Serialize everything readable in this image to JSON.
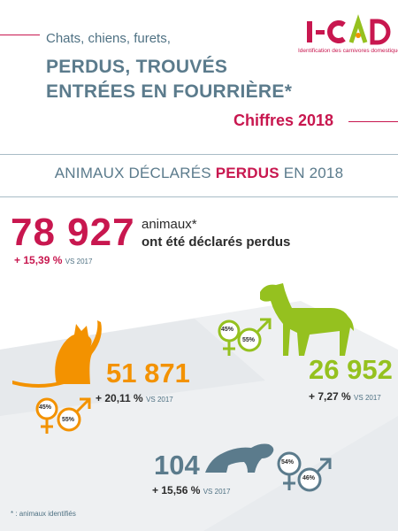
{
  "header": {
    "subtitle": "Chats, chiens, furets,",
    "title_line1": "PERDUS, TROUVÉS",
    "title_line2": "ENTRÉES EN FOURRIÈRE*",
    "year_label": "Chiffres 2018"
  },
  "logo": {
    "wordmark": "I-CAD",
    "tagline": "Identification des carnivores domestiques"
  },
  "section": {
    "title_start": "ANIMAUX DÉCLARÉS ",
    "title_highlight": "PERDUS",
    "title_end": " EN 2018"
  },
  "total": {
    "value": "78 927",
    "label_line1": "animaux*",
    "label_line2": "ont été déclarés perdus",
    "delta": "+ 15,39 %",
    "vs": "VS 2017"
  },
  "cats": {
    "value": "51 871",
    "delta": "+ 20,11 %",
    "vs": "VS 2017",
    "female_pct": "45%",
    "male_pct": "55%",
    "color": "#f39200"
  },
  "dogs": {
    "value": "26 952",
    "delta": "+ 7,27 %",
    "vs": "VS 2017",
    "female_pct": "45%",
    "male_pct": "55%",
    "color": "#95c11f"
  },
  "ferrets": {
    "value": "104",
    "delta": "+ 15,56 %",
    "vs": "VS 2017",
    "female_pct": "54%",
    "male_pct": "46%",
    "color": "#5b7b8c"
  },
  "footnote": "* : animaux identifiés"
}
